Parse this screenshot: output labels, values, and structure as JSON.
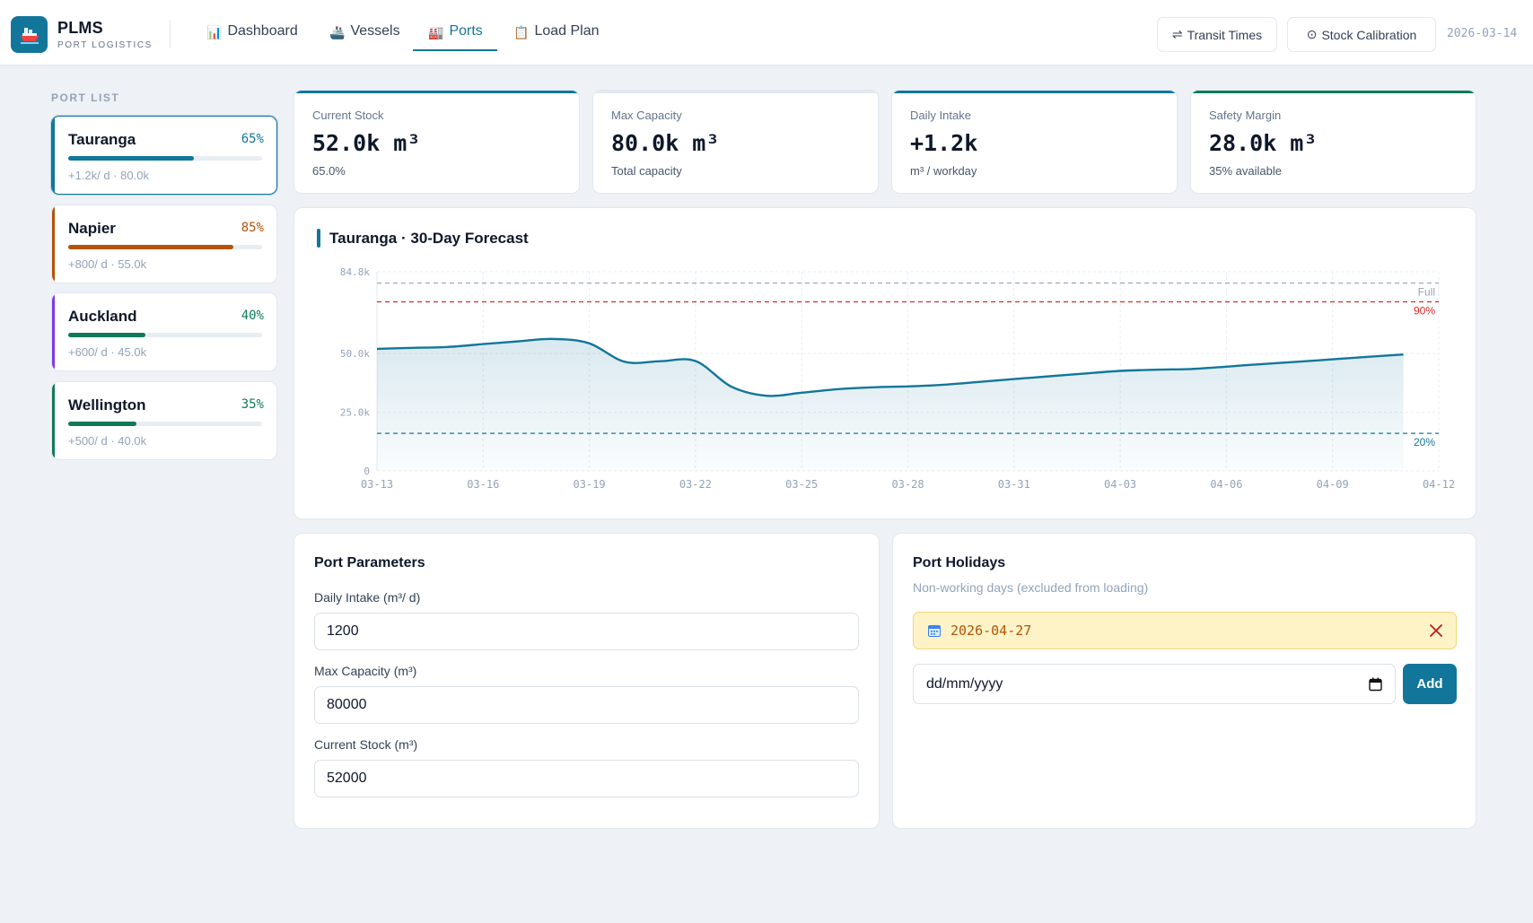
{
  "app": {
    "name": "PLMS",
    "subtitle": "PORT LOGISTICS",
    "date": "2026-03-14"
  },
  "nav": [
    {
      "label": "Dashboard",
      "icon": "bar-chart-icon",
      "active": false
    },
    {
      "label": "Vessels",
      "icon": "ship-icon",
      "active": false
    },
    {
      "label": "Ports",
      "icon": "factory-icon",
      "active": true
    },
    {
      "label": "Load Plan",
      "icon": "clipboard-icon",
      "active": false
    }
  ],
  "header_buttons": {
    "transit": {
      "icon": "⇌",
      "label": "Transit Times"
    },
    "calibration": {
      "icon": "⊙",
      "label": "Stock Calibration"
    }
  },
  "sidebar": {
    "title": "PORT LIST",
    "ports": [
      {
        "name": "Tauranga",
        "pct": "65%",
        "fill": 0.65,
        "meta": "+1.2k/ d · 80.0k",
        "color": "#12769b",
        "selected": true
      },
      {
        "name": "Napier",
        "pct": "85%",
        "fill": 0.85,
        "meta": "+800/ d · 55.0k",
        "color": "#b45309",
        "selected": false
      },
      {
        "name": "Auckland",
        "pct": "40%",
        "fill": 0.4,
        "meta": "+600/ d · 45.0k",
        "color": "#0f7a55",
        "selected": false,
        "accent": "#7c3aed"
      },
      {
        "name": "Wellington",
        "pct": "35%",
        "fill": 0.35,
        "meta": "+500/ d · 40.0k",
        "color": "#0f7a55",
        "selected": false
      }
    ]
  },
  "stats": [
    {
      "label": "Current Stock",
      "value": "52.0k m³",
      "sub": "65.0%",
      "color": "#12769b"
    },
    {
      "label": "Max Capacity",
      "value": "80.0k m³",
      "sub": "Total capacity",
      "color": "#e2e8f0"
    },
    {
      "label": "Daily Intake",
      "value": "+1.2k",
      "sub": "m³ / workday",
      "color": "#12769b"
    },
    {
      "label": "Safety Margin",
      "value": "28.0k m³",
      "sub": "35% available",
      "color": "#0f7a55"
    }
  ],
  "chart_title": "Tauranga · 30-Day Forecast",
  "chart_data": {
    "type": "area",
    "title": "Tauranga · 30-Day Forecast",
    "x_ticks": [
      "03-13",
      "03-16",
      "03-19",
      "03-22",
      "03-25",
      "03-28",
      "03-31",
      "04-03",
      "04-06",
      "04-09",
      "04-12"
    ],
    "y_ticks": [
      "84.8k",
      "50.0k",
      "25.0k",
      "0"
    ],
    "ylim": [
      0,
      84800
    ],
    "grid": true,
    "reference_lines": [
      {
        "label": "Full",
        "value": 80000,
        "color": "#94a3b8"
      },
      {
        "label": "90%",
        "value": 72000,
        "color": "#dc2626"
      },
      {
        "label": "20%",
        "value": 16000,
        "color": "#12769b"
      }
    ],
    "series": [
      {
        "color": "#12769b",
        "x": [
          "03-13",
          "03-14",
          "03-15",
          "03-16",
          "03-17",
          "03-18",
          "03-19",
          "03-20",
          "03-21",
          "03-22",
          "03-23",
          "03-24",
          "03-25",
          "03-26",
          "03-27",
          "03-28",
          "03-29",
          "03-30",
          "03-31",
          "04-01",
          "04-02",
          "04-03",
          "04-04",
          "04-05",
          "04-06",
          "04-07",
          "04-08",
          "04-09",
          "04-10",
          "04-11"
        ],
        "values": [
          52000,
          52400,
          52800,
          54000,
          55200,
          56200,
          54300,
          46500,
          46700,
          46800,
          36000,
          32000,
          33300,
          34800,
          35600,
          36000,
          36700,
          37900,
          39100,
          40300,
          41500,
          42600,
          43100,
          43400,
          44400,
          45500,
          46500,
          47500,
          48600,
          49600
        ]
      }
    ]
  },
  "params": {
    "title": "Port Parameters",
    "daily_intake_label": "Daily Intake (m³/ d)",
    "daily_intake_value": "1200",
    "max_capacity_label": "Max Capacity (m³)",
    "max_capacity_value": "80000",
    "current_stock_label": "Current Stock (m³)",
    "current_stock_value": "52000"
  },
  "holidays": {
    "title": "Port Holidays",
    "subtitle": "Non-working days (excluded from loading)",
    "items": [
      "2026-04-27"
    ],
    "date_placeholder": "dd/mm/yyyy",
    "add_label": "Add"
  }
}
